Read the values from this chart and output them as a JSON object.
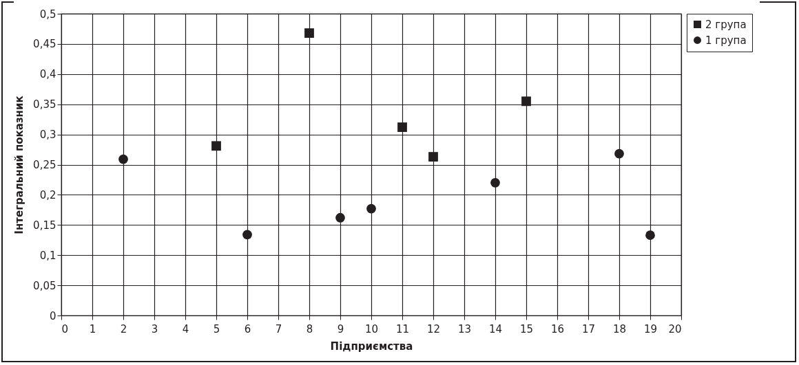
{
  "chart_data": {
    "type": "scatter",
    "xlabel": "Підприємства",
    "ylabel": "Інтегральний показник",
    "series": [
      {
        "name": "2 група",
        "color": "#231f20",
        "marker": "square",
        "x": [
          5,
          8,
          11,
          12,
          15
        ],
        "values": [
          0.281,
          0.468,
          0.312,
          0.263,
          0.355
        ]
      },
      {
        "name": "1 група",
        "color": "#231f20",
        "marker": "circle",
        "x": [
          2,
          6,
          9,
          10,
          14,
          18,
          19
        ],
        "values": [
          0.259,
          0.134,
          0.162,
          0.177,
          0.22,
          0.268,
          0.133
        ]
      }
    ],
    "xlim": [
      0,
      20
    ],
    "xticks": [
      0,
      1,
      2,
      3,
      4,
      5,
      6,
      7,
      8,
      9,
      10,
      11,
      12,
      13,
      14,
      15,
      16,
      17,
      18,
      19,
      20
    ],
    "ylim": [
      0,
      0.5
    ],
    "yticks": [
      0,
      {
        "value": 0.05,
        "label": "0,05"
      },
      {
        "value": 0.1,
        "label": "0,1"
      },
      {
        "value": 0.15,
        "label": "0,15"
      },
      {
        "value": 0.2,
        "label": "0,2"
      },
      {
        "value": 0.25,
        "label": "0,25"
      },
      {
        "value": 0.3,
        "label": "0,3"
      },
      {
        "value": 0.35,
        "label": "0,35"
      },
      {
        "value": 0.4,
        "label": "0,4"
      },
      {
        "value": 0.45,
        "label": "0,45"
      },
      {
        "value": 0.5,
        "label": "0,5"
      }
    ],
    "grid": true,
    "legend": "right"
  }
}
